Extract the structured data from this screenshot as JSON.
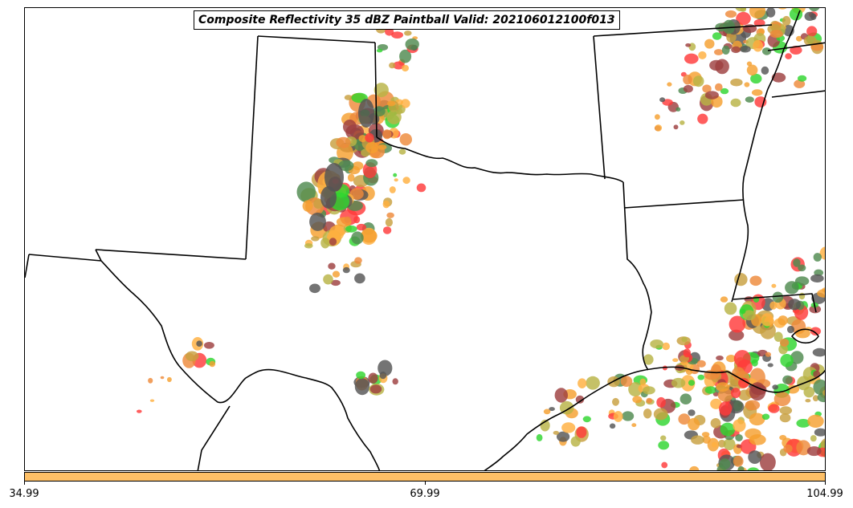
{
  "title": "Composite Reflectivity 35 dBZ Paintball Valid: 202106012100f013",
  "colorbar": {
    "color": "#fdbf66",
    "ticks": [
      "34.99",
      "69.99",
      "104.99"
    ]
  },
  "colors": {
    "member_colors": [
      "#ff3b3b",
      "#2fd62f",
      "#f5a030",
      "#b8b345",
      "#9e3f3f",
      "#4f8a4f",
      "#555555",
      "#c8a040",
      "#ee8a3a",
      "#ffb040"
    ]
  },
  "map": {
    "boundaries": "black state and coastline outlines (Texas and surrounding states)"
  }
}
